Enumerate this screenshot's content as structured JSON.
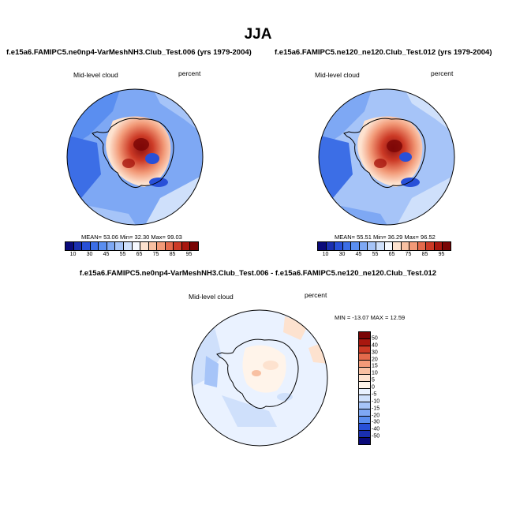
{
  "title": "JJA",
  "panels": [
    {
      "case": "f.e15a6.FAMIPC5.ne0np4-VarMeshNH3.Club_Test.006 (yrs 1979-2004)",
      "variable": "Mid-level cloud",
      "units": "percent",
      "stats": "MEAN=  53.06  Min=  32.30  Max=  99.03"
    },
    {
      "case": "f.e15a6.FAMIPC5.ne120_ne120.Club_Test.012 (yrs 1979-2004)",
      "variable": "Mid-level cloud",
      "units": "percent",
      "stats": "MEAN=  55.51  Min=  36.29  Max=  96.52"
    },
    {
      "case": "f.e15a6.FAMIPC5.ne0np4-VarMeshNH3.Club_Test.006 - f.e15a6.FAMIPC5.ne120_ne120.Club_Test.012",
      "variable": "Mid-level cloud",
      "units": "percent",
      "stats": "MIN = -13.07 MAX =  12.59"
    }
  ],
  "colorbar_abs": {
    "labels": [
      "10",
      "30",
      "45",
      "55",
      "65",
      "75",
      "85",
      "95"
    ],
    "colors": [
      "#0a0a7a",
      "#1a2fb0",
      "#2850d8",
      "#3c6ee6",
      "#5a8ef0",
      "#7ea8f4",
      "#a6c4f8",
      "#cfe0fb",
      "#f6f9ff",
      "#fde2cf",
      "#f8c0a2",
      "#f29a78",
      "#e46a4c",
      "#cc3a26",
      "#a8170f",
      "#7a0505"
    ]
  },
  "colorbar_diff": {
    "labels": [
      "50",
      "40",
      "30",
      "20",
      "15",
      "10",
      "5",
      "0",
      "-5",
      "-10",
      "-15",
      "-20",
      "-30",
      "-40",
      "-50"
    ],
    "colors": [
      "#7a0505",
      "#a8170f",
      "#cc3a26",
      "#e46a4c",
      "#f29a78",
      "#f8c0a2",
      "#fde2cf",
      "#fff4ea",
      "#eaf2ff",
      "#cfe0fb",
      "#a6c4f8",
      "#7ea8f4",
      "#5a8ef0",
      "#2850d8",
      "#1a2fb0",
      "#0a0a7a"
    ]
  }
}
